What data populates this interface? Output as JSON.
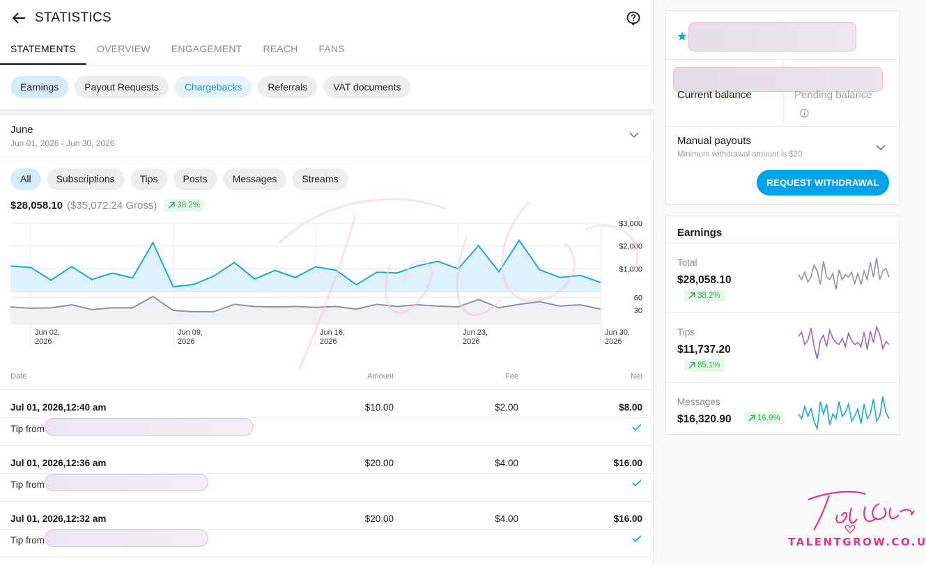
{
  "header": {
    "title": "STATISTICS"
  },
  "tabs": [
    "STATEMENTS",
    "OVERVIEW",
    "ENGAGEMENT",
    "REACH",
    "FANS"
  ],
  "statement_chips": [
    "Earnings",
    "Payout Requests",
    "Chargebacks",
    "Referrals",
    "VAT documents"
  ],
  "period": {
    "month": "June",
    "range": "Jun 01, 2026 - Jun 30, 2026"
  },
  "filter_chips": [
    "All",
    "Subscriptions",
    "Tips",
    "Posts",
    "Messages",
    "Streams"
  ],
  "summary": {
    "net": "$28,058.10",
    "gross": "($35,072.24 Gross)",
    "change": "38.2%"
  },
  "chart_data": {
    "type": "line",
    "x": [
      "Jun 01",
      "Jun 02",
      "Jun 03",
      "Jun 04",
      "Jun 05",
      "Jun 06",
      "Jun 07",
      "Jun 08",
      "Jun 09",
      "Jun 10",
      "Jun 11",
      "Jun 12",
      "Jun 13",
      "Jun 14",
      "Jun 15",
      "Jun 16",
      "Jun 17",
      "Jun 18",
      "Jun 19",
      "Jun 20",
      "Jun 21",
      "Jun 22",
      "Jun 23",
      "Jun 24",
      "Jun 25",
      "Jun 26",
      "Jun 27",
      "Jun 28",
      "Jun 29",
      "Jun 30"
    ],
    "x_tick_labels": [
      "Jun 02, 2026",
      "Jun 09, 2026",
      "Jun 16, 2026",
      "Jun 23, 2026",
      "Jun 30, 2026"
    ],
    "series": [
      {
        "values": [
          1120,
          1060,
          500,
          1100,
          530,
          810,
          600,
          2150,
          210,
          310,
          680,
          1280,
          550,
          930,
          620,
          1090,
          940,
          300,
          850,
          820,
          1130,
          1330,
          1000,
          2020,
          870,
          2250,
          960,
          620,
          710,
          400
        ],
        "ylim": [
          0,
          3000
        ],
        "y_ticks": [
          "$3,000",
          "$2,000",
          "$1,000"
        ]
      },
      {
        "values": [
          38,
          35,
          36,
          43,
          32,
          36,
          36,
          62,
          30,
          27,
          27,
          44,
          39,
          38,
          39,
          37,
          39,
          33,
          44,
          39,
          43,
          40,
          38,
          55,
          36,
          44,
          50,
          40,
          43,
          33
        ],
        "ylim": [
          0,
          90
        ],
        "y_ticks": [
          "60",
          "30"
        ]
      }
    ]
  },
  "table": {
    "headers": {
      "date": "Date",
      "amount": "Amount",
      "fee": "Fee",
      "net": "Net"
    },
    "rows": [
      {
        "date": "Jul 01, 2026,12:40 am",
        "amount": "$10.00",
        "fee": "$2.00",
        "net": "$8.00",
        "desc": "Tip from"
      },
      {
        "date": "Jul 01, 2026,12:36 am",
        "amount": "$20.00",
        "fee": "$4.00",
        "net": "$16.00",
        "desc": "Tip from"
      },
      {
        "date": "Jul 01, 2026,12:32 am",
        "amount": "$20.00",
        "fee": "$4.00",
        "net": "$16.00",
        "desc": "Tip from"
      }
    ]
  },
  "balance": {
    "current_label": "Current balance",
    "pending_label": "Pending balance",
    "manual_title": "Manual payouts",
    "manual_sub": "Minimum withdrawal amount is $20",
    "withdraw_label": "REQUEST WITHDRAWAL"
  },
  "earnings": {
    "title": "Earnings",
    "items": [
      {
        "label": "Total",
        "value": "$28,058.10",
        "change": "38.2%",
        "color": "#8e949c",
        "spark": [
          28,
          24,
          30,
          22,
          26,
          36,
          31,
          20,
          39,
          26,
          24,
          29,
          16,
          32,
          24,
          28,
          26,
          30,
          21,
          29,
          20,
          31,
          24,
          38,
          26,
          42,
          24,
          31,
          33,
          26
        ]
      },
      {
        "label": "Tips",
        "value": "$11,737.20",
        "change": "85.1%",
        "color": "#9466c8",
        "spark": [
          34,
          38,
          26,
          30,
          42,
          24,
          12,
          30,
          35,
          24,
          40,
          32,
          28,
          26,
          32,
          24,
          37,
          30,
          26,
          28,
          24,
          38,
          21,
          39,
          28,
          43,
          36,
          22,
          29,
          26
        ]
      },
      {
        "label": "Messages",
        "value": "$16,320.90",
        "change": "16.9%",
        "color": "#16a9df",
        "spark": [
          30,
          26,
          36,
          28,
          34,
          24,
          18,
          40,
          30,
          38,
          21,
          30,
          26,
          40,
          28,
          31,
          38,
          24,
          28,
          34,
          22,
          38,
          26,
          30,
          42,
          24,
          28,
          44,
          31,
          26
        ]
      }
    ]
  },
  "branding": {
    "url": "TALENTGROW.CO.UK",
    "accent": "#e0358a",
    "primary": "#00a3e8"
  }
}
